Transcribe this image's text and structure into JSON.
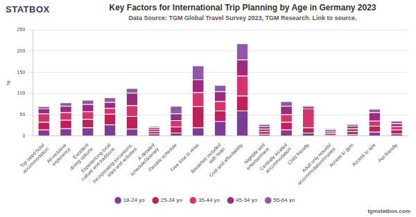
{
  "chart_data": {
    "type": "bar",
    "title": "Key Factors for International Trip Planning by Age in Germany 2023",
    "subtitle": "Data Source: TGM Global Travel Survey 2023, TGM Research. Link to source.",
    "y_label": "%",
    "annotations": [
      "STATBOX",
      "tgmstatbox.com"
    ],
    "categories": [
      "Top rated hotel accommodation",
      "All-inclusive experience",
      "Excellent dining options",
      "Experiencing local culture and traditions",
      "Incorporating excursions, sites and activities",
      "A detailed schedule/itinerary",
      "Flexible schedule",
      "Free time to relax",
      "Breakfast included with hotel",
      "Cost and affordability",
      "Nightlife and entertainment",
      "Centrally located accommodation",
      "Child friendly",
      "Adult only resorts/accommodation/cruises",
      "Access to gym",
      "Access to spa",
      "Pet-friendly"
    ],
    "series": [
      {
        "name": "18-24 yo",
        "color": "#7d3c98",
        "values": [
          15,
          18,
          20,
          27,
          17,
          6,
          8,
          20,
          35,
          60,
          5,
          15,
          8,
          3,
          4,
          10,
          6
        ]
      },
      {
        "name": "25-34 yo",
        "color": "#c0205a",
        "values": [
          18,
          20,
          20,
          25,
          30,
          5,
          14,
          50,
          25,
          35,
          6,
          18,
          12,
          4,
          7,
          14,
          9
        ]
      },
      {
        "name": "35-44 yo",
        "color": "#d6336c",
        "values": [
          20,
          18,
          18,
          14,
          25,
          5,
          15,
          33,
          22,
          47,
          6,
          18,
          45,
          4,
          7,
          12,
          8
        ]
      },
      {
        "name": "45-54 yo",
        "color": "#9c2a7e",
        "values": [
          12,
          15,
          17,
          14,
          30,
          4,
          16,
          30,
          23,
          38,
          6,
          20,
          5,
          4,
          6,
          20,
          7
        ]
      },
      {
        "name": "55-64 yo",
        "color": "#8e5aa8",
        "values": [
          5,
          8,
          10,
          11,
          11,
          3,
          18,
          33,
          15,
          38,
          5,
          11,
          3,
          3,
          4,
          8,
          6
        ]
      }
    ],
    "ylim": [
      0,
      250
    ],
    "yticks": [
      0,
      50,
      100,
      150,
      200,
      250
    ],
    "grid": true,
    "stacked": true,
    "legend": "bottom"
  }
}
